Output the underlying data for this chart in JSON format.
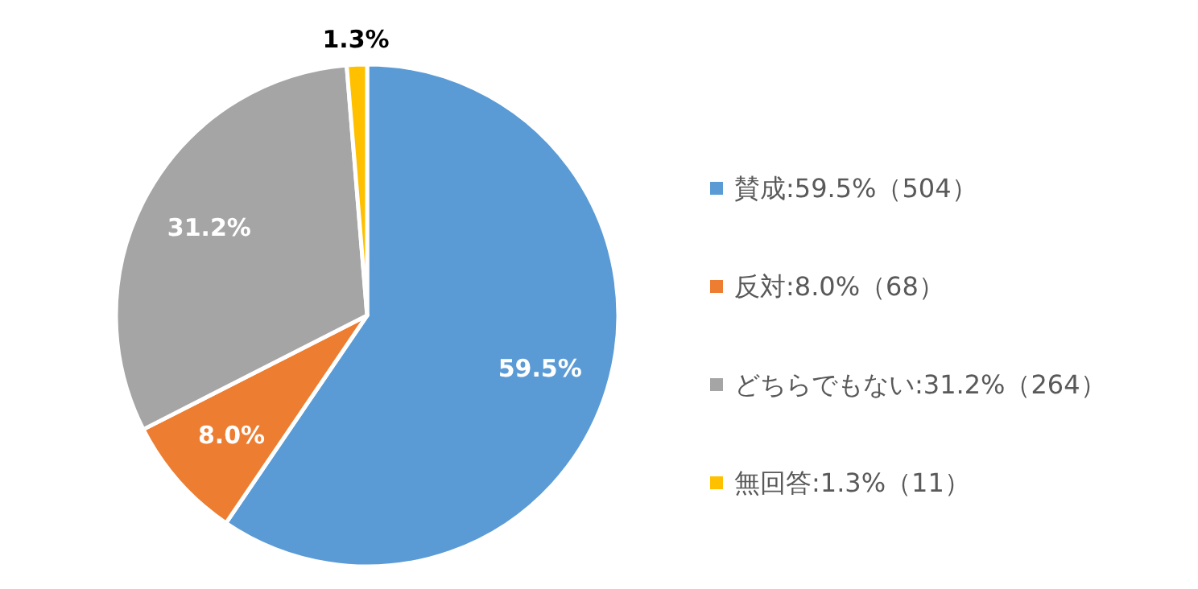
{
  "chart_data": {
    "type": "pie",
    "categories": [
      "賛成:59.5%（504）",
      "反対:8.0%（68）",
      "どちらでもない:31.2%（264）",
      "無回答:1.3%（11）"
    ],
    "values": [
      59.5,
      8.0,
      31.2,
      1.3
    ],
    "value_labels": [
      "59.5%",
      "8.0%",
      "31.2%",
      "1.3%"
    ],
    "colors": [
      "#5b9bd5",
      "#ed7d31",
      "#a5a5a5",
      "#ffc000"
    ],
    "legend": "right"
  }
}
